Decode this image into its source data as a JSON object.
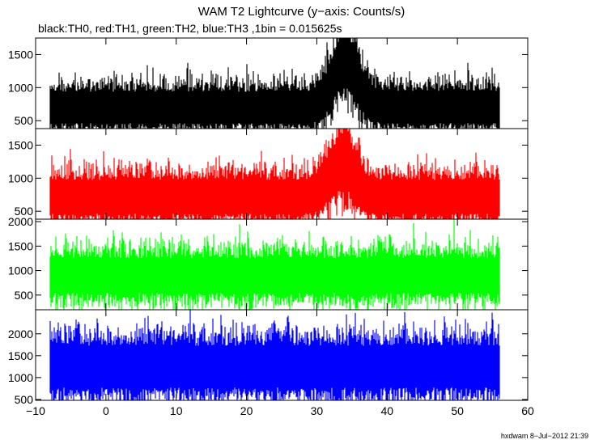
{
  "header": {
    "title": "WAM T2 Lightcurve (y−axis: Counts/s)",
    "subtitle": "black:TH0, red:TH1, green:TH2, blue:TH3 ,1bin = 0.015625s"
  },
  "footer": {
    "stamp": "hxdwam  8−Jul−2012 21:39"
  },
  "chart_data": {
    "type": "line",
    "xlim": [
      -10,
      60
    ],
    "x_ticks": [
      -10,
      0,
      10,
      20,
      30,
      40,
      50,
      60
    ],
    "x_tick_labels": [
      "−10",
      "0",
      "10",
      "20",
      "30",
      "40",
      "50",
      "60"
    ],
    "grid": false,
    "legend": "none",
    "panels": [
      {
        "series": "TH0",
        "color": "#000000",
        "ylim": [
          380,
          1750
        ],
        "y_ticks": [
          500,
          1000,
          1500
        ],
        "y_tick_labels": [
          "500",
          "1000",
          "1500"
        ],
        "x_range": [
          -8,
          56
        ],
        "baseline_mean": 700,
        "baseline_spread": 280,
        "flare": {
          "center": 34,
          "width": 2.5,
          "amplitude": 700
        }
      },
      {
        "series": "TH1",
        "color": "#ff0000",
        "ylim": [
          380,
          1750
        ],
        "y_ticks": [
          500,
          1000,
          1500
        ],
        "y_tick_labels": [
          "500",
          "1000",
          "1500"
        ],
        "x_range": [
          -8,
          56
        ],
        "baseline_mean": 720,
        "baseline_spread": 300,
        "flare": {
          "center": 33.5,
          "width": 2.5,
          "amplitude": 500
        }
      },
      {
        "series": "TH2",
        "color": "#00ff00",
        "ylim": [
          200,
          2050
        ],
        "y_ticks": [
          500,
          1000,
          1500,
          2000
        ],
        "y_tick_labels": [
          "500",
          "1000",
          "1500",
          "2000"
        ],
        "x_range": [
          -8,
          56
        ],
        "baseline_mean": 900,
        "baseline_spread": 420,
        "flare": {
          "center": 34,
          "width": 2.5,
          "amplitude": 0
        }
      },
      {
        "series": "TH3",
        "color": "#0000ff",
        "ylim": [
          480,
          2550
        ],
        "y_ticks": [
          500,
          1000,
          1500,
          2000
        ],
        "y_tick_labels": [
          "500",
          "1000",
          "1500",
          "2000"
        ],
        "x_range": [
          -8,
          56
        ],
        "baseline_mean": 1250,
        "baseline_spread": 560,
        "flare": {
          "center": 34,
          "width": 2.5,
          "amplitude": 0
        }
      }
    ]
  }
}
